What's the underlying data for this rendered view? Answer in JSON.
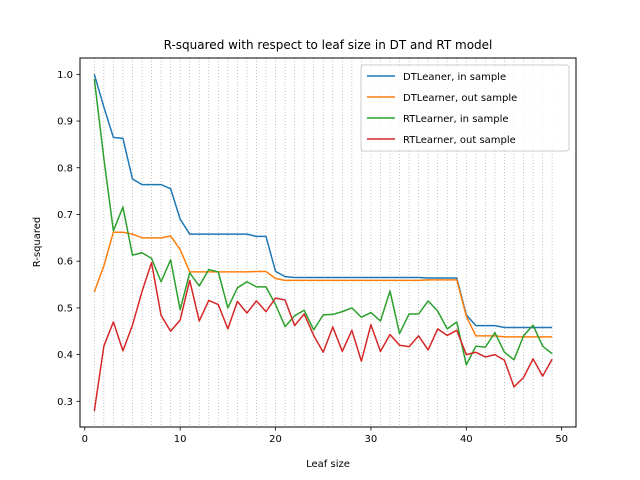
{
  "chart_data": {
    "type": "line",
    "title": "R-squared with respect to leaf size in DT and RT model",
    "xlabel": "Leaf size",
    "ylabel": "R-squared",
    "xlim": [
      -0.5,
      51.5
    ],
    "ylim": [
      0.245,
      1.035
    ],
    "xticks": [
      0,
      10,
      20,
      30,
      40,
      50
    ],
    "xtick_labels": [
      "0",
      "10",
      "20",
      "30",
      "40",
      "50"
    ],
    "yticks": [
      0.3,
      0.4,
      0.5,
      0.6,
      0.7,
      0.8,
      0.9,
      1.0
    ],
    "ytick_labels": [
      "0.3",
      "0.4",
      "0.5",
      "0.6",
      "0.7",
      "0.8",
      "0.9",
      "1.0"
    ],
    "grid": "vertical dotted lines at each integer x",
    "legend_position": "top-right",
    "x": [
      1,
      2,
      3,
      4,
      5,
      6,
      7,
      8,
      9,
      10,
      11,
      12,
      13,
      14,
      15,
      16,
      17,
      18,
      19,
      20,
      21,
      22,
      23,
      24,
      25,
      26,
      27,
      28,
      29,
      30,
      31,
      32,
      33,
      34,
      35,
      36,
      37,
      38,
      39,
      40,
      41,
      42,
      43,
      44,
      45,
      46,
      47,
      48,
      49
    ],
    "series": [
      {
        "name": "DTLeaner, in sample",
        "color": "#1f77b4",
        "values": [
          1.0,
          0.93,
          0.865,
          0.863,
          0.776,
          0.764,
          0.764,
          0.764,
          0.755,
          0.69,
          0.658,
          0.658,
          0.658,
          0.658,
          0.658,
          0.658,
          0.658,
          0.653,
          0.653,
          0.578,
          0.567,
          0.565,
          0.565,
          0.565,
          0.565,
          0.565,
          0.565,
          0.565,
          0.565,
          0.565,
          0.565,
          0.565,
          0.565,
          0.565,
          0.565,
          0.564,
          0.564,
          0.564,
          0.564,
          0.485,
          0.462,
          0.462,
          0.462,
          0.458,
          0.458,
          0.458,
          0.458,
          0.458,
          0.458
        ]
      },
      {
        "name": "DTLearner, out sample",
        "color": "#ff7f0e",
        "values": [
          0.534,
          0.59,
          0.662,
          0.662,
          0.658,
          0.65,
          0.65,
          0.65,
          0.654,
          0.625,
          0.577,
          0.577,
          0.577,
          0.577,
          0.577,
          0.577,
          0.577,
          0.578,
          0.578,
          0.563,
          0.559,
          0.559,
          0.559,
          0.559,
          0.559,
          0.559,
          0.559,
          0.559,
          0.559,
          0.559,
          0.559,
          0.559,
          0.559,
          0.559,
          0.559,
          0.56,
          0.56,
          0.56,
          0.56,
          0.482,
          0.44,
          0.44,
          0.44,
          0.438,
          0.438,
          0.438,
          0.438,
          0.438,
          0.438
        ]
      },
      {
        "name": "RTLearner, in sample",
        "color": "#2ca02c",
        "values": [
          0.99,
          0.82,
          0.665,
          0.716,
          0.613,
          0.618,
          0.606,
          0.556,
          0.603,
          0.496,
          0.575,
          0.547,
          0.582,
          0.577,
          0.5,
          0.543,
          0.556,
          0.545,
          0.545,
          0.507,
          0.46,
          0.483,
          0.495,
          0.453,
          0.485,
          0.486,
          0.492,
          0.5,
          0.48,
          0.49,
          0.472,
          0.536,
          0.445,
          0.487,
          0.487,
          0.515,
          0.493,
          0.455,
          0.47,
          0.378,
          0.418,
          0.416,
          0.447,
          0.405,
          0.389,
          0.44,
          0.463,
          0.418,
          0.402
        ]
      },
      {
        "name": "RTLearner, out sample",
        "color": "#d62728",
        "values": [
          0.279,
          0.418,
          0.47,
          0.408,
          0.463,
          0.535,
          0.597,
          0.484,
          0.45,
          0.474,
          0.559,
          0.472,
          0.516,
          0.507,
          0.455,
          0.514,
          0.489,
          0.515,
          0.492,
          0.521,
          0.517,
          0.462,
          0.487,
          0.441,
          0.405,
          0.459,
          0.407,
          0.452,
          0.386,
          0.464,
          0.407,
          0.443,
          0.42,
          0.417,
          0.44,
          0.41,
          0.455,
          0.441,
          0.452,
          0.4,
          0.405,
          0.395,
          0.4,
          0.388,
          0.331,
          0.351,
          0.391,
          0.354,
          0.39
        ]
      }
    ]
  }
}
